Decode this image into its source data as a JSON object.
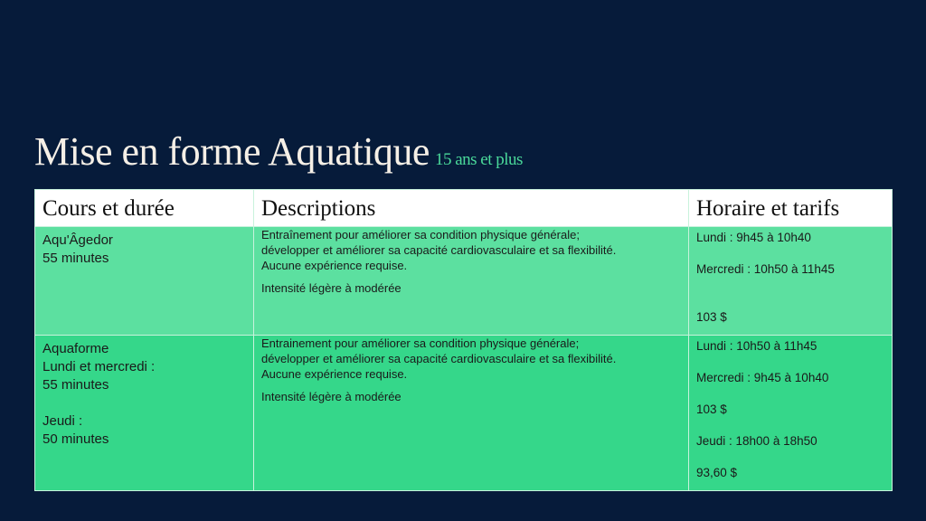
{
  "title": "Mise en forme Aquatique",
  "subtitle": "15 ans et plus",
  "headers": [
    "Cours et durée",
    "Descriptions",
    "Horaire et tarifs"
  ],
  "rows": [
    {
      "course": [
        "Aqu'Âgedor",
        "55 minutes"
      ],
      "description": [
        "Entraînement pour améliorer sa condition physique générale;",
        "développer et améliorer sa capacité cardiovasculaire et sa flexibilité.",
        "Aucune expérience requise."
      ],
      "intensity": "Intensité légère à modérée",
      "schedule": [
        "Lundi : 9h45 à 10h40",
        "Mercredi : 10h50 à 11h45",
        "103 $"
      ]
    },
    {
      "course": [
        "Aquaforme",
        "Lundi et mercredi :",
        "55 minutes",
        "Jeudi :",
        "50 minutes"
      ],
      "description": [
        "Entrainement pour améliorer sa condition physique générale;",
        "développer et améliorer sa capacité cardiovasculaire et sa flexibilité.",
        "Aucune expérience requise."
      ],
      "intensity": "Intensité légère à modérée",
      "schedule": [
        "Lundi : 10h50 à 11h45",
        "Mercredi : 9h45 à 10h40",
        "103 $",
        "Jeudi : 18h00 à 18h50",
        "93,60 $"
      ]
    }
  ],
  "colors": {
    "background": "#061b3a",
    "row1": "#5ce0a0",
    "row2": "#35d78a",
    "accent": "#4ad99a"
  }
}
